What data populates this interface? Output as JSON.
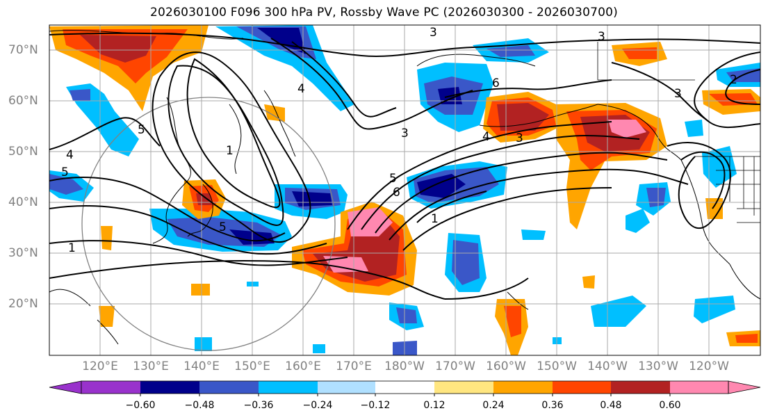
{
  "title": "2026030100 F096 300 hPa PV, Rossby Wave PC (2026030300 - 2026030700)",
  "lat_labels": [
    "70°N",
    "60°N",
    "50°N",
    "40°N",
    "30°N",
    "20°N"
  ],
  "lon_labels": [
    "120°E",
    "130°E",
    "140°E",
    "150°E",
    "160°E",
    "170°E",
    "180°W",
    "170°W",
    "160°W",
    "150°W",
    "140°W",
    "130°W",
    "120°W"
  ],
  "contour_labels": [
    "3",
    "3",
    "3",
    "2",
    "4",
    "5",
    "1",
    "5",
    "6",
    "4",
    "3",
    "5",
    "6",
    "1",
    "4",
    "3",
    "1",
    "5"
  ],
  "colorbar": {
    "ticks": [
      "−0.60",
      "−0.48",
      "−0.36",
      "−0.24",
      "−0.12",
      "0.12",
      "0.24",
      "0.36",
      "0.48",
      "0.60"
    ],
    "colors": [
      "#9932cc",
      "#00008b",
      "#3a57c8",
      "#00bfff",
      "#b0e0ff",
      "#ffffff",
      "#ffe680",
      "#ffa500",
      "#ff4500",
      "#b22222",
      "#ff88b0",
      "#ff88b0"
    ]
  }
}
